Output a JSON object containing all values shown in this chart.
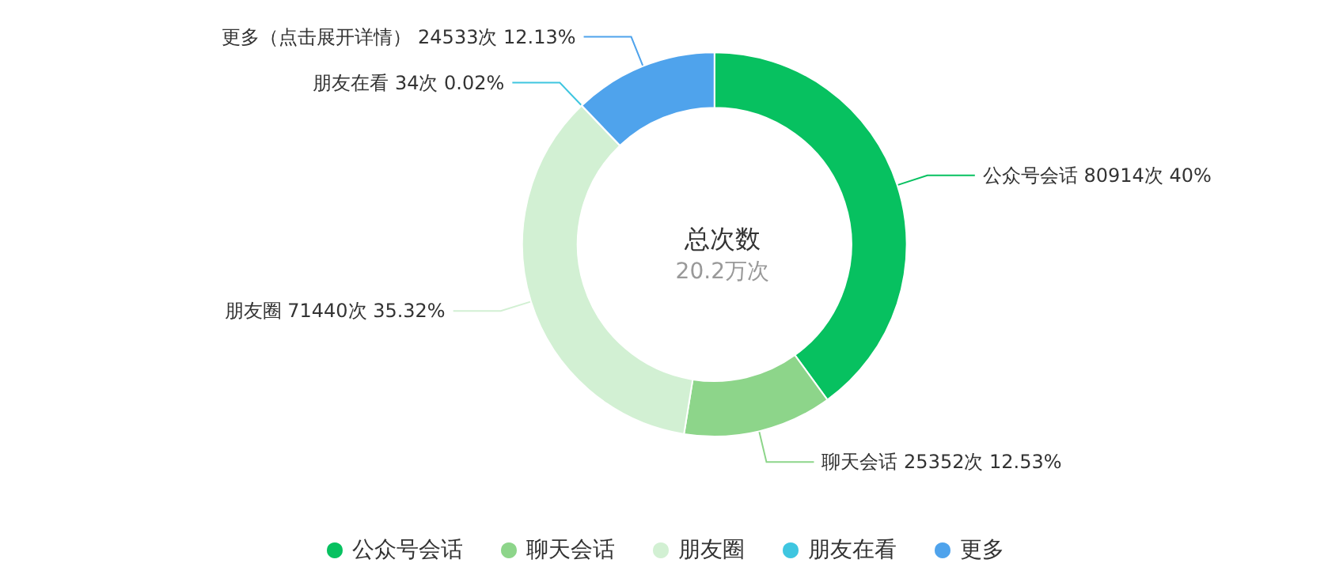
{
  "chart_data": {
    "type": "donut",
    "title": "总次数",
    "subtitle": "20.2万次",
    "categories": [
      "公众号会话",
      "聊天会话",
      "朋友圈",
      "朋友在看",
      "更多"
    ],
    "values": [
      80914,
      25352,
      71440,
      34,
      24533
    ],
    "colors": [
      "#07c160",
      "#8dd58a",
      "#d2f0d3",
      "#3fc6e0",
      "#4fa3ec"
    ],
    "value_labels": [
      "公众号会话 80914次 40%",
      "聊天会话 25352次 12.53%",
      "朋友圈 71440次 35.32%",
      "朋友在看 34次 0.02%",
      "更多（点击展开详情） 24533次 12.13%"
    ],
    "legend": "bottom"
  }
}
